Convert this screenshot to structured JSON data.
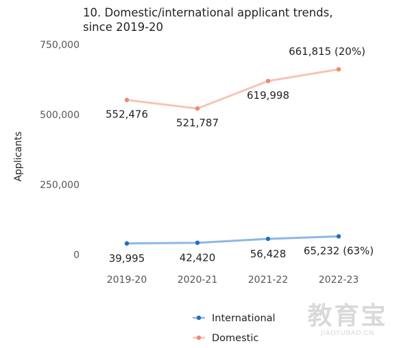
{
  "chart_data": {
    "type": "line",
    "title_lines": [
      "10. Domestic/international applicant trends,",
      "since 2019-20"
    ],
    "ylabel": "Applicants",
    "xlabel": "",
    "categories": [
      "2019-20",
      "2020-21",
      "2021-22",
      "2022-23"
    ],
    "ylim": [
      0,
      750000
    ],
    "yticks": [
      0,
      250000,
      500000,
      750000
    ],
    "ytick_labels": [
      "0",
      "250,000",
      "500,000",
      "750,000"
    ],
    "grid": false,
    "legend_position": "bottom-center",
    "series": [
      {
        "name": "International",
        "color": "#1f6fbf",
        "line_color": "#8db8e3",
        "values": [
          39995,
          42420,
          56428,
          65232
        ],
        "labels": [
          "39,995",
          "42,420",
          "56,428",
          "65,232 (63%)"
        ]
      },
      {
        "name": "Domestic",
        "color": "#f4866c",
        "line_color": "#f8c3b5",
        "values": [
          552476,
          521787,
          619998,
          661815
        ],
        "labels": [
          "552,476",
          "521,787",
          "619,998",
          "661,815 (20%)"
        ]
      }
    ]
  },
  "watermark": {
    "logo_text": "教育宝",
    "site": "JIAOYUBAO.CN"
  }
}
